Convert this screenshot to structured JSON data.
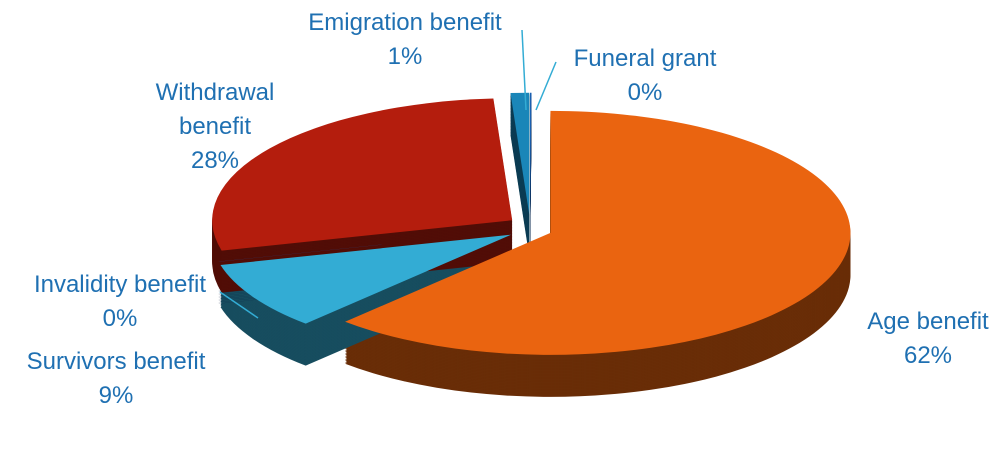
{
  "chart_data": {
    "type": "pie",
    "categories": [
      "Funeral grant",
      "Age benefit",
      "Survivors benefit",
      "Invalidity benefit",
      "Withdrawal benefit",
      "Emigration benefit"
    ],
    "values": [
      0,
      62,
      9,
      0,
      28,
      1
    ],
    "value_labels": [
      "0%",
      "62%",
      "9%",
      "0%",
      "28%",
      "1%"
    ],
    "colors": [
      "#1a5fb0",
      "#ea6410",
      "#33acd4",
      "#1f4fa0",
      "#b41d0d",
      "#1a86b8"
    ]
  }
}
